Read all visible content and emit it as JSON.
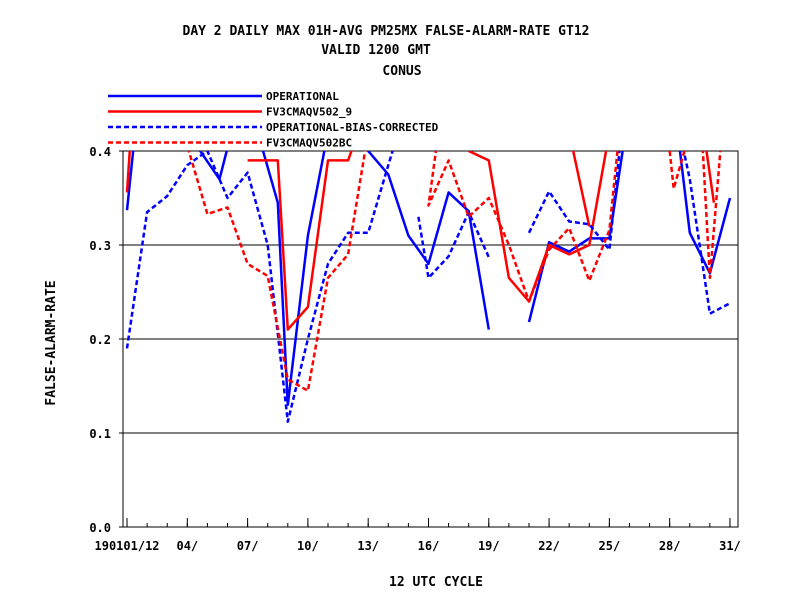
{
  "chart_data": {
    "type": "line",
    "title_lines": [
      "DAY 2 DAILY MAX   01H-AVG PM25MX FALSE-ALARM-RATE GT12",
      "VALID 1200 GMT",
      "CONUS"
    ],
    "xlabel": "12 UTC CYCLE",
    "ylabel": "FALSE-ALARM-RATE",
    "ylim": [
      0.0,
      0.4
    ],
    "xlim": [
      0.8,
      31.4
    ],
    "yticks": [
      "0.0",
      "0.1",
      "0.2",
      "0.3",
      "0.4"
    ],
    "xticks": [
      {
        "x": 1,
        "label": "190101/12"
      },
      {
        "x": 4,
        "label": "04/"
      },
      {
        "x": 7,
        "label": "07/"
      },
      {
        "x": 10,
        "label": "10/"
      },
      {
        "x": 13,
        "label": "13/"
      },
      {
        "x": 16,
        "label": "16/"
      },
      {
        "x": 19,
        "label": "19/"
      },
      {
        "x": 22,
        "label": "22/"
      },
      {
        "x": 25,
        "label": "25/"
      },
      {
        "x": 28,
        "label": "28/"
      },
      {
        "x": 31,
        "label": "31/"
      }
    ],
    "grid": "horizontal",
    "legend_position": "top-left",
    "series": [
      {
        "name": "OPERATIONAL",
        "color": "#0000ff",
        "dash": "solid",
        "segments": [
          [
            [
              1,
              0.337
            ],
            [
              1.4,
              0.42
            ]
          ],
          [
            [
              4,
              0.42
            ],
            [
              5.6,
              0.37
            ],
            [
              6.2,
              0.42
            ]
          ],
          [
            [
              7.5,
              0.42
            ],
            [
              8.5,
              0.345
            ],
            [
              9,
              0.13
            ],
            [
              10,
              0.31
            ],
            [
              11,
              0.42
            ]
          ],
          [
            [
              13,
              0.4
            ],
            [
              14,
              0.375
            ],
            [
              15,
              0.31
            ],
            [
              16,
              0.28
            ],
            [
              17,
              0.356
            ],
            [
              18,
              0.336
            ],
            [
              19,
              0.21
            ]
          ],
          [
            [
              21,
              0.218
            ],
            [
              22,
              0.303
            ],
            [
              23,
              0.293
            ],
            [
              24,
              0.307
            ],
            [
              25,
              0.307
            ],
            [
              25.8,
              0.42
            ]
          ],
          [
            [
              28.4,
              0.42
            ],
            [
              29,
              0.313
            ],
            [
              30,
              0.27
            ],
            [
              31,
              0.35
            ]
          ]
        ]
      },
      {
        "name": "FV3CMAQV502_9",
        "color": "#ff0000",
        "dash": "solid",
        "segments": [
          [
            [
              1,
              0.356
            ],
            [
              1.2,
              0.42
            ]
          ],
          [
            [
              7,
              0.39
            ],
            [
              7.5,
              0.39
            ],
            [
              8.5,
              0.39
            ],
            [
              9,
              0.21
            ],
            [
              10,
              0.234
            ],
            [
              11,
              0.39
            ],
            [
              12,
              0.39
            ],
            [
              12.5,
              0.42
            ]
          ],
          [
            [
              18,
              0.4
            ],
            [
              19,
              0.39
            ],
            [
              20,
              0.265
            ],
            [
              21,
              0.24
            ],
            [
              22,
              0.3
            ],
            [
              23,
              0.29
            ],
            [
              24,
              0.3
            ],
            [
              25,
              0.42
            ]
          ],
          [
            [
              23,
              0.42
            ],
            [
              24,
              0.32
            ]
          ],
          [
            [
              29.7,
              0.42
            ],
            [
              30.2,
              0.345
            ]
          ]
        ]
      },
      {
        "name": "OPERATIONAL-BIAS-CORRECTED",
        "color": "#0000ff",
        "dash": "dashed",
        "segments": [
          [
            [
              1,
              0.19
            ],
            [
              2,
              0.335
            ],
            [
              3,
              0.352
            ],
            [
              4,
              0.385
            ],
            [
              5,
              0.4
            ],
            [
              6,
              0.35
            ],
            [
              7,
              0.377
            ],
            [
              8,
              0.3
            ],
            [
              9,
              0.112
            ],
            [
              10,
              0.2
            ],
            [
              11,
              0.28
            ],
            [
              12,
              0.313
            ],
            [
              13,
              0.313
            ],
            [
              14,
              0.385
            ],
            [
              14.5,
              0.42
            ]
          ],
          [
            [
              15.5,
              0.33
            ],
            [
              16,
              0.265
            ],
            [
              17,
              0.288
            ],
            [
              18,
              0.335
            ],
            [
              19,
              0.287
            ]
          ],
          [
            [
              21,
              0.313
            ],
            [
              22,
              0.357
            ],
            [
              23,
              0.325
            ],
            [
              24,
              0.322
            ],
            [
              25,
              0.295
            ],
            [
              25.6,
              0.42
            ]
          ],
          [
            [
              28.5,
              0.42
            ],
            [
              29,
              0.37
            ],
            [
              30,
              0.227
            ],
            [
              31,
              0.238
            ]
          ]
        ]
      },
      {
        "name": "FV3CMAQV502BC",
        "color": "#ff0000",
        "dash": "dashed",
        "segments": [
          [
            [
              3.8,
              0.42
            ],
            [
              5,
              0.333
            ],
            [
              6,
              0.34
            ],
            [
              7,
              0.28
            ],
            [
              8,
              0.267
            ],
            [
              9,
              0.157
            ],
            [
              10,
              0.145
            ],
            [
              11,
              0.265
            ],
            [
              12,
              0.29
            ],
            [
              13,
              0.42
            ]
          ],
          [
            [
              16.5,
              0.42
            ],
            [
              16,
              0.342
            ],
            [
              17,
              0.39
            ],
            [
              18,
              0.33
            ],
            [
              19,
              0.35
            ],
            [
              20,
              0.3
            ],
            [
              21,
              0.24
            ],
            [
              22,
              0.295
            ],
            [
              23,
              0.318
            ],
            [
              24,
              0.262
            ],
            [
              25,
              0.316
            ],
            [
              25.5,
              0.42
            ]
          ],
          [
            [
              28,
              0.4
            ],
            [
              28.2,
              0.36
            ],
            [
              29,
              0.42
            ]
          ],
          [
            [
              29.6,
              0.42
            ],
            [
              30,
              0.265
            ],
            [
              30.6,
              0.42
            ]
          ]
        ]
      }
    ]
  }
}
